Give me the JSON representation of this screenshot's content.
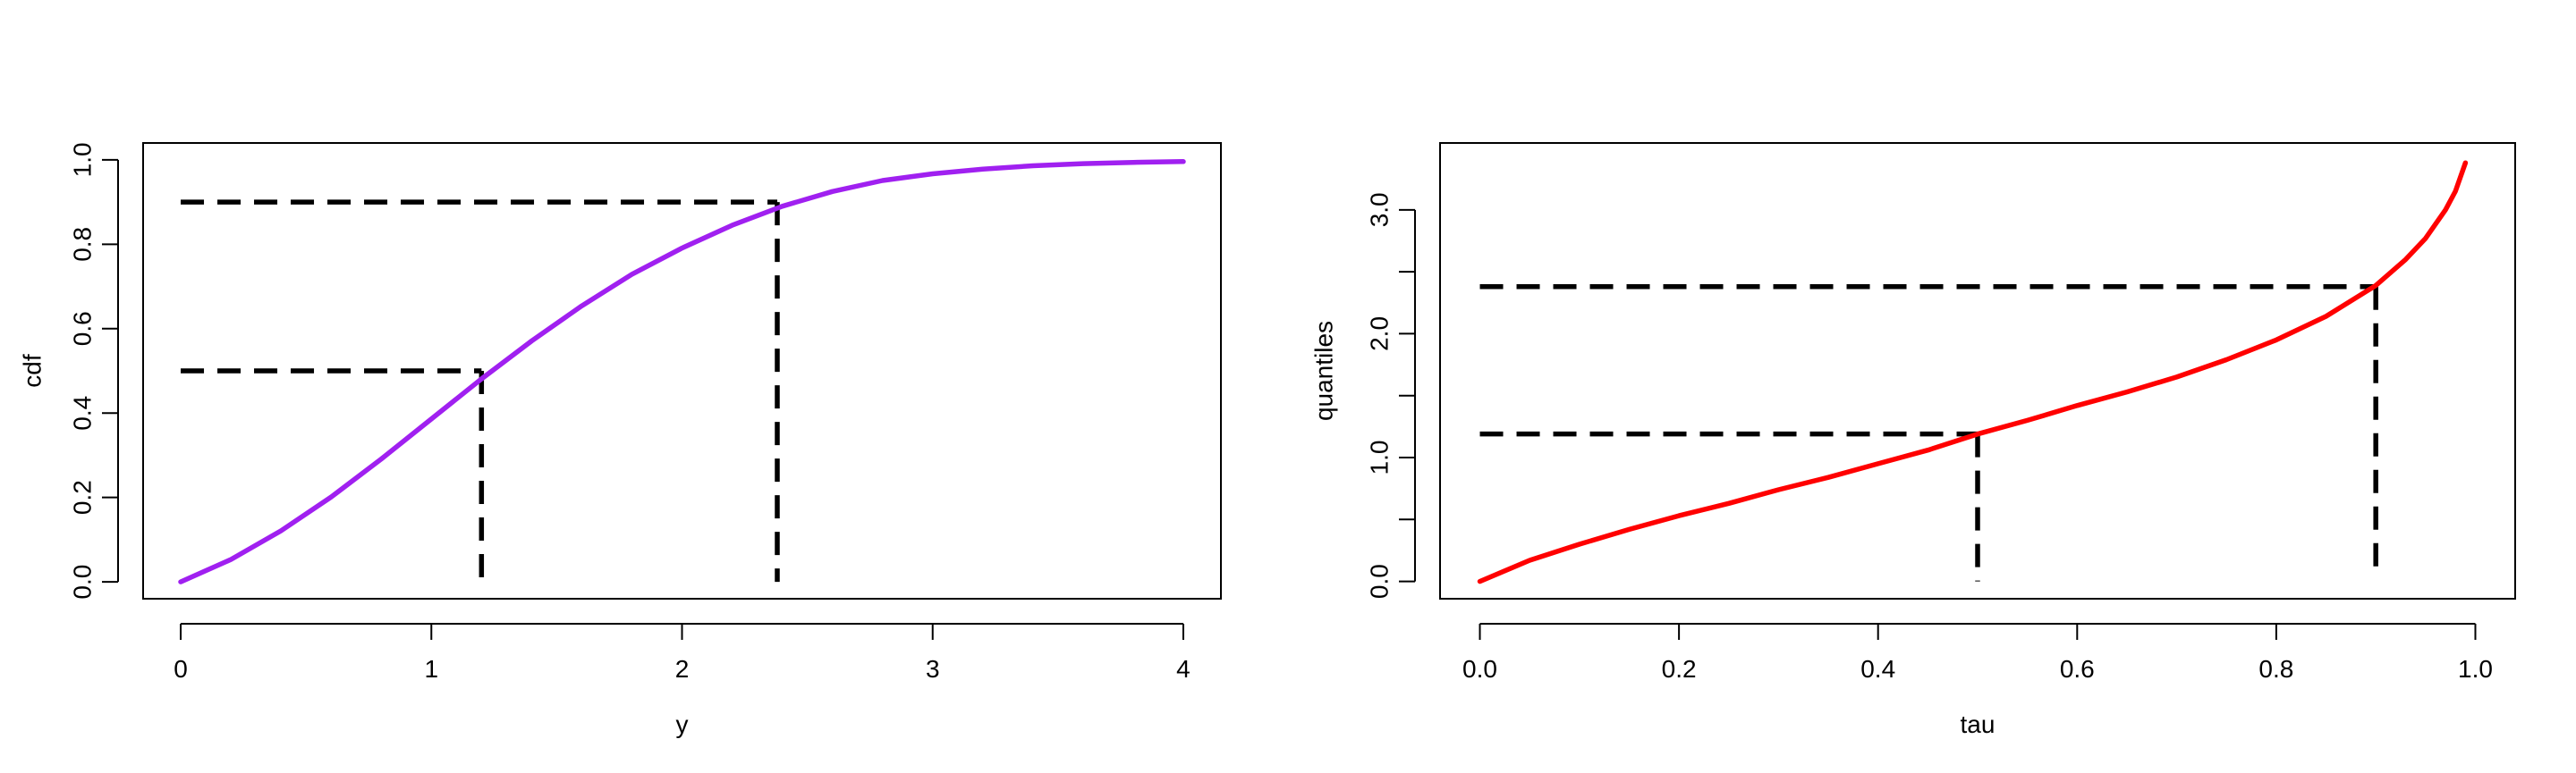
{
  "chart_data": [
    {
      "type": "line",
      "xlabel": "y",
      "ylabel": "cdf",
      "xlim": [
        -0.15,
        4.15
      ],
      "ylim": [
        -0.04,
        1.04
      ],
      "xticks": [
        0,
        1,
        2,
        3,
        4
      ],
      "xtick_labels": [
        "0",
        "1",
        "2",
        "3",
        "4"
      ],
      "yticks": [
        0,
        0.2,
        0.4,
        0.6,
        0.8,
        1.0
      ],
      "ytick_labels": [
        "0.0",
        "0.2",
        "0.4",
        "0.6",
        "0.8",
        "1.0"
      ],
      "grid": false,
      "series": [
        {
          "color": "#a020f0",
          "x": [
            0,
            0.2,
            0.4,
            0.6,
            0.8,
            1.0,
            1.2,
            1.4,
            1.6,
            1.8,
            2.0,
            2.2,
            2.4,
            2.6,
            2.8,
            3.0,
            3.2,
            3.4,
            3.6,
            3.8,
            4.0
          ],
          "y": [
            0,
            0.053,
            0.121,
            0.201,
            0.291,
            0.386,
            0.481,
            0.571,
            0.654,
            0.729,
            0.791,
            0.845,
            0.89,
            0.925,
            0.951,
            0.967,
            0.978,
            0.986,
            0.991,
            0.994,
            0.996
          ]
        }
      ],
      "guides": [
        {
          "x": 1.2,
          "y": 0.5,
          "from": 0
        },
        {
          "x": 2.38,
          "y": 0.9,
          "from": 0
        }
      ]
    },
    {
      "type": "line",
      "xlabel": "tau",
      "ylabel": "quantiles",
      "xlim": [
        -0.04,
        1.04
      ],
      "ylim": [
        -0.14,
        3.54
      ],
      "xticks": [
        0,
        0.2,
        0.4,
        0.6,
        0.8,
        1.0
      ],
      "xtick_labels": [
        "0.0",
        "0.2",
        "0.4",
        "0.6",
        "0.8",
        "1.0"
      ],
      "yticks": [
        0,
        0.5,
        1.0,
        1.5,
        2.0,
        2.5,
        3.0
      ],
      "ytick_labels": [
        "0.0",
        "",
        "1.0",
        "",
        "2.0",
        "",
        "3.0"
      ],
      "grid": false,
      "series": [
        {
          "color": "#ff0000",
          "x": [
            0,
            0.05,
            0.1,
            0.15,
            0.2,
            0.25,
            0.3,
            0.35,
            0.4,
            0.45,
            0.5,
            0.55,
            0.6,
            0.65,
            0.7,
            0.75,
            0.8,
            0.85,
            0.9,
            0.93,
            0.95,
            0.97,
            0.98,
            0.99
          ],
          "y": [
            0,
            0.17,
            0.3,
            0.42,
            0.53,
            0.63,
            0.74,
            0.84,
            0.95,
            1.06,
            1.19,
            1.3,
            1.42,
            1.53,
            1.65,
            1.79,
            1.95,
            2.14,
            2.39,
            2.6,
            2.77,
            3.0,
            3.15,
            3.38
          ]
        }
      ],
      "guides": [
        {
          "x": 0.5,
          "y": 1.19,
          "from": 0
        },
        {
          "x": 0.9,
          "y": 2.38,
          "from": 0.12
        }
      ]
    }
  ]
}
